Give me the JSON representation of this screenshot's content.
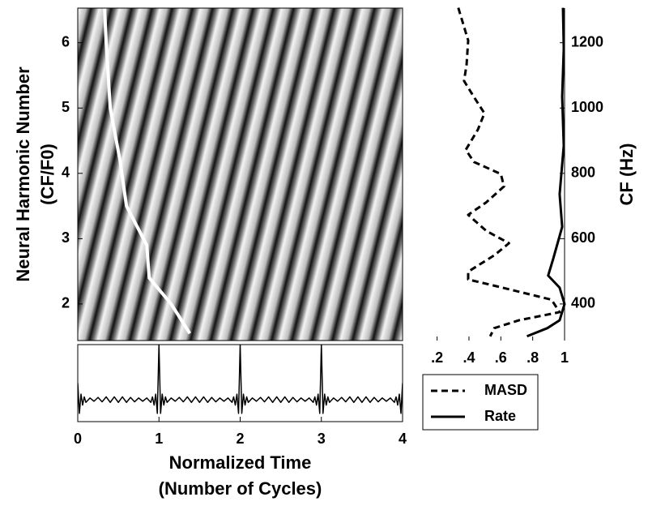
{
  "chart_data": [
    {
      "type": "line",
      "ylabel": [
        "Neural Harmonic Number",
        "(CF/F0)"
      ],
      "xlim": [
        0,
        4
      ],
      "ylim": [
        1.44,
        6.53
      ],
      "yticks": [
        2,
        3,
        4,
        5,
        6
      ],
      "series": [
        {
          "color": "#ffffff",
          "x": [
            0.33,
            0.35,
            0.4,
            0.52,
            0.6,
            0.85,
            0.88,
            1.15,
            1.38
          ],
          "values": [
            6.53,
            6.0,
            5.0,
            4.2,
            3.5,
            2.9,
            2.4,
            2.0,
            1.55
          ]
        }
      ]
    },
    {
      "type": "line",
      "xlabel": [
        "Normalized Time",
        "(Number of Cycles)"
      ],
      "xlim": [
        0,
        4
      ],
      "xticks": [
        0,
        1,
        2,
        3,
        4
      ],
      "ylim": [
        -0.4,
        1
      ],
      "series": [
        {
          "color": "#000000",
          "x": [
            0,
            0.02,
            0.04,
            0.06,
            0.08,
            0.1,
            0.15,
            0.2,
            0.25,
            0.3,
            0.35,
            0.4,
            0.45,
            0.5,
            0.55,
            0.6,
            0.65,
            0.7,
            0.75,
            0.8,
            0.85,
            0.9,
            0.92,
            0.94,
            0.96,
            0.98,
            1,
            1.02,
            1.04,
            1.06,
            1.08,
            1.1,
            1.15,
            1.2,
            1.25,
            1.3,
            1.35,
            1.4,
            1.45,
            1.5,
            1.55,
            1.6,
            1.65,
            1.7,
            1.75,
            1.8,
            1.85,
            1.9,
            1.92,
            1.94,
            1.96,
            1.98,
            2,
            2.02,
            2.04,
            2.06,
            2.08,
            2.1,
            2.15,
            2.2,
            2.25,
            2.3,
            2.35,
            2.4,
            2.45,
            2.5,
            2.55,
            2.6,
            2.65,
            2.7,
            2.75,
            2.8,
            2.85,
            2.9,
            2.92,
            2.94,
            2.96,
            2.98,
            3,
            3.02,
            3.04,
            3.06,
            3.08,
            3.1,
            3.15,
            3.2,
            3.25,
            3.3,
            3.35,
            3.4,
            3.45,
            3.5,
            3.55,
            3.6,
            3.65,
            3.7,
            3.75,
            3.8,
            3.85,
            3.9,
            3.92,
            3.94,
            3.96,
            3.98,
            4
          ],
          "values": [
            0.3,
            -0.25,
            0.1,
            -0.1,
            0.05,
            -0.05,
            0.03,
            -0.03,
            0.04,
            -0.04,
            0.05,
            -0.05,
            0.05,
            -0.05,
            0.05,
            -0.05,
            0.04,
            -0.04,
            0.03,
            -0.03,
            0.03,
            -0.05,
            0.05,
            -0.1,
            0.1,
            -0.25,
            1,
            -0.25,
            0.1,
            -0.1,
            0.05,
            -0.05,
            0.03,
            -0.03,
            0.04,
            -0.04,
            0.05,
            -0.05,
            0.05,
            -0.05,
            0.05,
            -0.05,
            0.04,
            -0.04,
            0.03,
            -0.03,
            0.03,
            -0.05,
            0.05,
            -0.1,
            0.1,
            -0.25,
            1,
            -0.25,
            0.1,
            -0.1,
            0.05,
            -0.05,
            0.03,
            -0.03,
            0.04,
            -0.04,
            0.05,
            -0.05,
            0.05,
            -0.05,
            0.05,
            -0.05,
            0.04,
            -0.04,
            0.03,
            -0.03,
            0.03,
            -0.05,
            0.05,
            -0.1,
            0.1,
            -0.25,
            1,
            -0.25,
            0.1,
            -0.1,
            0.05,
            -0.05,
            0.03,
            -0.03,
            0.04,
            -0.04,
            0.05,
            -0.05,
            0.05,
            -0.05,
            0.05,
            -0.05,
            0.04,
            -0.04,
            0.03,
            -0.03,
            0.03,
            -0.05,
            0.05,
            -0.1,
            0.1,
            -0.25,
            0.3
          ]
        }
      ]
    },
    {
      "type": "profile",
      "y2label": "CF (Hz)",
      "xlim": [
        0.09,
        1
      ],
      "xticks": [
        {
          "value": 0.2,
          "label": ".2"
        },
        {
          "value": 0.4,
          "label": ".4"
        },
        {
          "value": 0.6,
          "label": ".6"
        },
        {
          "value": 0.8,
          "label": ".8"
        },
        1
      ],
      "y2lim": [
        288,
        1306
      ],
      "y2ticks": [
        400,
        600,
        800,
        1000,
        1200
      ],
      "legend": "lower-left",
      "series": [
        {
          "name": "MASD",
          "color": "#000000",
          "linestyle": "dashed",
          "y": [
            1307,
            1207,
            1133,
            1083,
            1034,
            984,
            934,
            872,
            835,
            798,
            760,
            711,
            673,
            624,
            586,
            549,
            499,
            475,
            450,
            413,
            375,
            350,
            326,
            301
          ],
          "values": [
            0.333,
            0.395,
            0.385,
            0.369,
            0.431,
            0.497,
            0.456,
            0.38,
            0.431,
            0.6,
            0.62,
            0.508,
            0.395,
            0.508,
            0.651,
            0.559,
            0.395,
            0.395,
            0.61,
            0.918,
            0.969,
            0.713,
            0.559,
            0.533
          ]
        },
        {
          "name": "Rate",
          "color": "#000000",
          "linestyle": "solid",
          "y": [
            1307,
            1183,
            1034,
            885,
            736,
            636,
            537,
            487,
            450,
            400,
            350,
            326,
            301
          ],
          "values": [
            0.99,
            0.995,
            0.985,
            0.995,
            0.969,
            0.985,
            0.928,
            0.897,
            0.969,
            1.0,
            0.969,
            0.892,
            0.764
          ]
        }
      ]
    }
  ]
}
